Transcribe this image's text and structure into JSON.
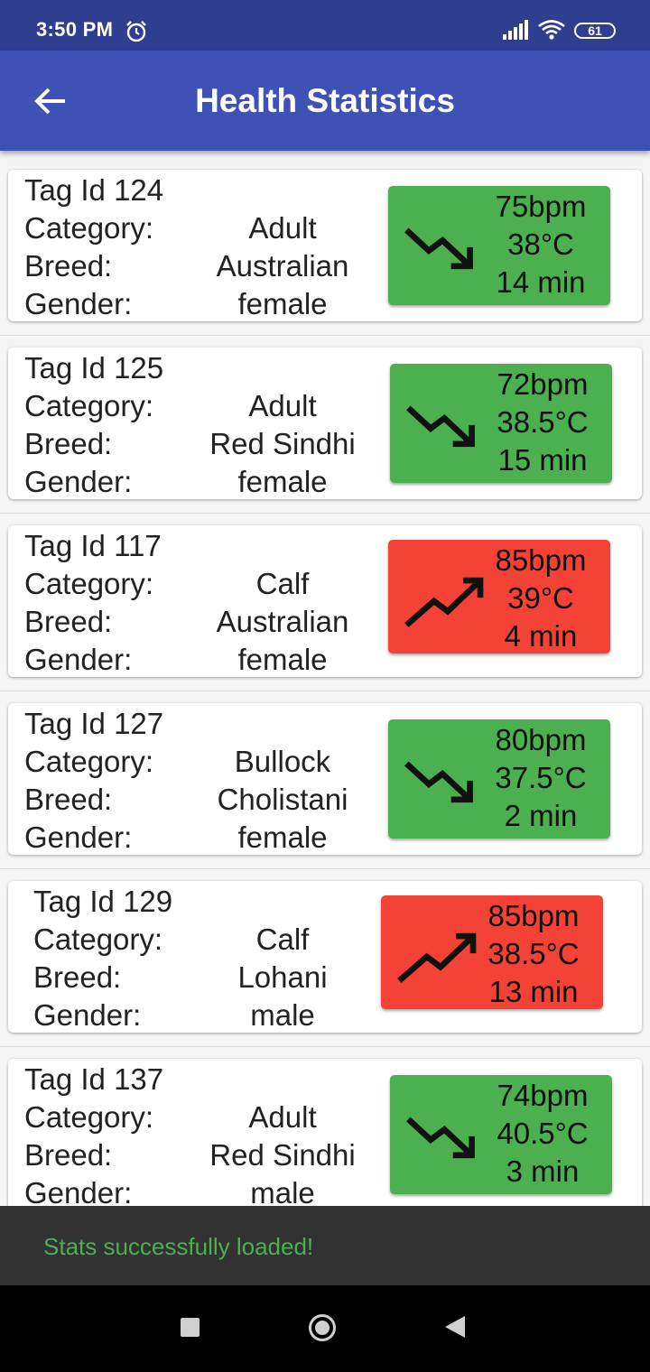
{
  "status_bar": {
    "time": "3:50 PM",
    "battery": "61"
  },
  "app_bar": {
    "title": "Health Statistics"
  },
  "labels": {
    "category": "Category:",
    "breed": "Breed:",
    "gender": "Gender:"
  },
  "animals": [
    {
      "tag": "Tag Id 124",
      "category": "Adult",
      "breed": "Australian",
      "gender": "female",
      "bpm": "75bpm",
      "temp": "38°C",
      "time": "14 min",
      "status": "green",
      "trend": "down"
    },
    {
      "tag": "Tag Id 125",
      "category": "Adult",
      "breed": "Red Sindhi",
      "gender": "female",
      "bpm": "72bpm",
      "temp": "38.5°C",
      "time": "15 min",
      "status": "green",
      "trend": "down"
    },
    {
      "tag": "Tag Id 117",
      "category": "Calf",
      "breed": "Australian",
      "gender": "female",
      "bpm": "85bpm",
      "temp": "39°C",
      "time": "4 min",
      "status": "red",
      "trend": "up"
    },
    {
      "tag": "Tag Id 127",
      "category": "Bullock",
      "breed": "Cholistani",
      "gender": "female",
      "bpm": "80bpm",
      "temp": "37.5°C",
      "time": "2 min",
      "status": "green",
      "trend": "down"
    },
    {
      "tag": "Tag Id 129",
      "category": "Calf",
      "breed": "Lohani",
      "gender": "male",
      "bpm": "85bpm",
      "temp": "38.5°C",
      "time": "13 min",
      "status": "red",
      "trend": "up"
    },
    {
      "tag": "Tag Id 137",
      "category": "Adult",
      "breed": "Red Sindhi",
      "gender": "male",
      "bpm": "74bpm",
      "temp": "40.5°C",
      "time": "3 min",
      "status": "green",
      "trend": "down"
    }
  ],
  "toast": {
    "message": "Stats successfully loaded!"
  },
  "colors": {
    "appbar": "#3f51b5",
    "statusbar": "#2f3e8f",
    "normal": "#4caf50",
    "alert": "#f44336",
    "toast_text": "#4caf50"
  }
}
